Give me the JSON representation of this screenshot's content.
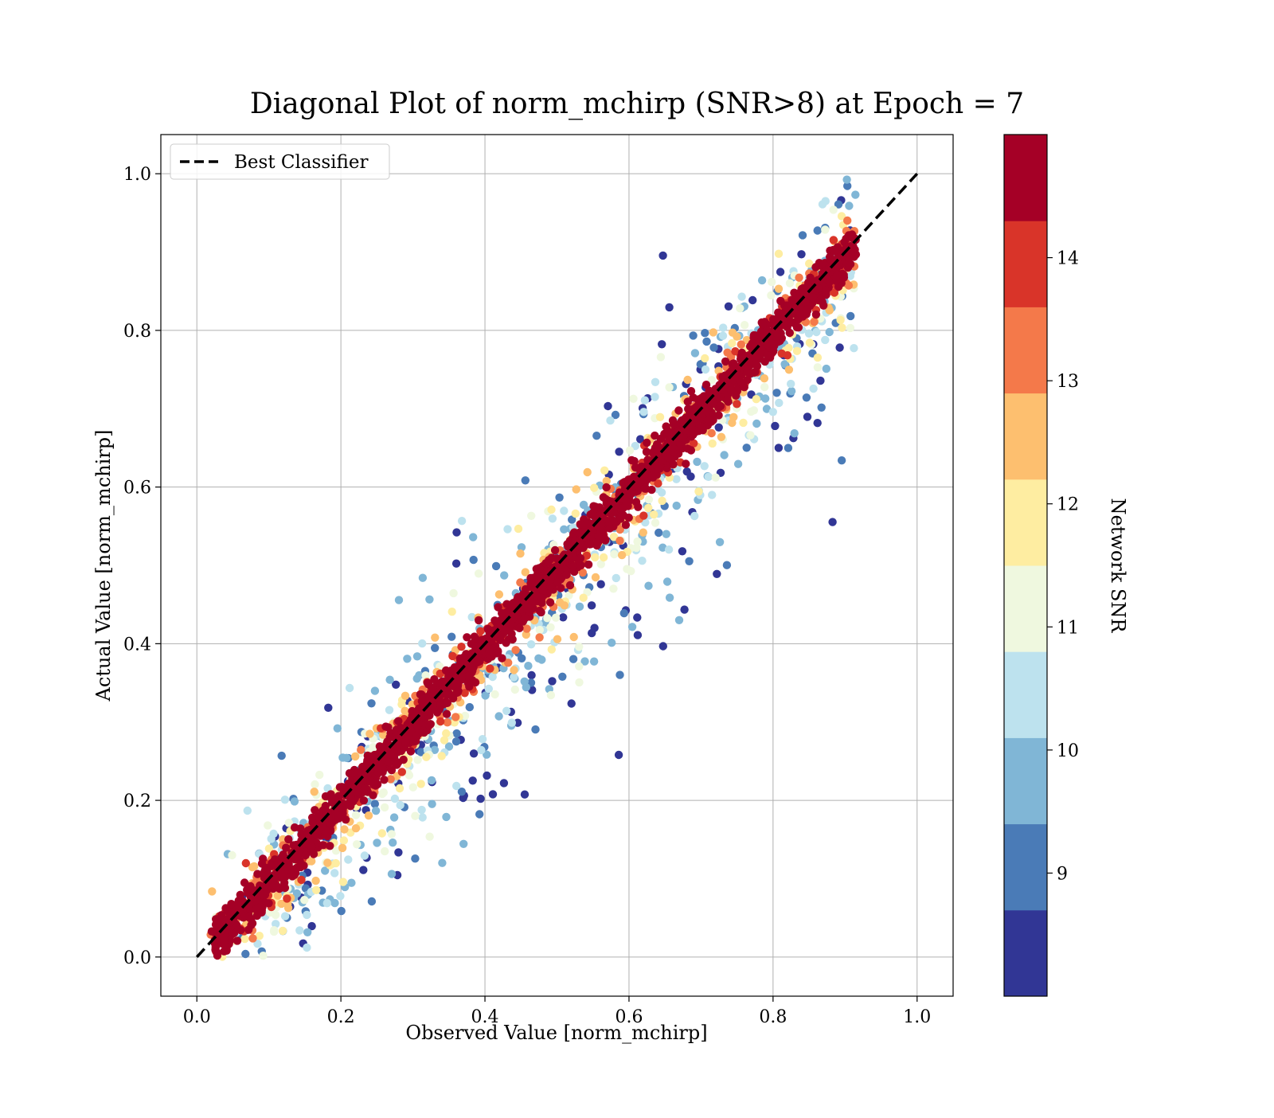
{
  "chart_data": {
    "type": "scatter",
    "title": "Diagonal Plot of norm_mchirp (SNR>8) at Epoch = 7",
    "xlabel": "Observed Value [norm_mchirp]",
    "ylabel": "Actual Value [norm_mchirp]",
    "xlim": [
      -0.05,
      1.05
    ],
    "ylim": [
      -0.05,
      1.05
    ],
    "xticks": [
      "0.0",
      "0.2",
      "0.4",
      "0.6",
      "0.8",
      "1.0"
    ],
    "yticks": [
      "0.0",
      "0.2",
      "0.4",
      "0.6",
      "0.8",
      "1.0"
    ],
    "grid": true,
    "legend": {
      "position": "top-left",
      "entries": [
        "Best Classifier"
      ]
    },
    "reference_line": {
      "name": "Best Classifier",
      "x": [
        0.0,
        1.0
      ],
      "y": [
        0.0,
        1.0
      ],
      "style": "dashed",
      "color": "#000000"
    },
    "colorbar": {
      "label": "Network SNR",
      "range": [
        8,
        15
      ],
      "ticks": [
        "9",
        "10",
        "11",
        "12",
        "13",
        "14"
      ],
      "bins": [
        {
          "from": 8.0,
          "to": 8.7,
          "color": "#313695"
        },
        {
          "from": 8.7,
          "to": 9.4,
          "color": "#4a7bb7"
        },
        {
          "from": 9.4,
          "to": 10.1,
          "color": "#80b6d6"
        },
        {
          "from": 10.1,
          "to": 10.8,
          "color": "#bde2ee"
        },
        {
          "from": 10.8,
          "to": 11.5,
          "color": "#eff8df"
        },
        {
          "from": 11.5,
          "to": 12.2,
          "color": "#feeda1"
        },
        {
          "from": 12.2,
          "to": 12.9,
          "color": "#fdbf6f"
        },
        {
          "from": 12.9,
          "to": 13.6,
          "color": "#f4794a"
        },
        {
          "from": 13.6,
          "to": 14.3,
          "color": "#d93429"
        },
        {
          "from": 14.3,
          "to": 15.0,
          "color": "#a50026"
        }
      ]
    },
    "point_count_estimate": 4000
  }
}
